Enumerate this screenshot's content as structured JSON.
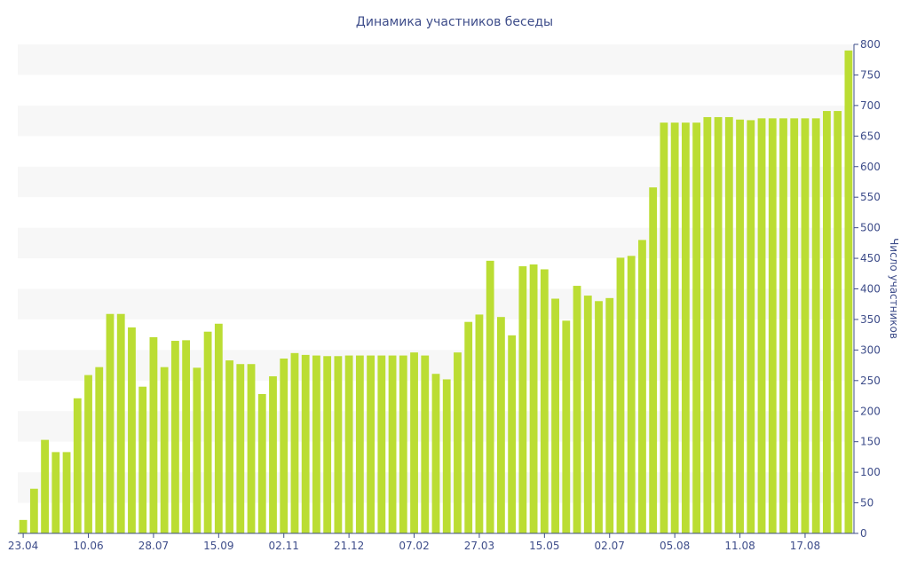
{
  "colors": {
    "bar": "#bbdd33",
    "band": "#f7f7f7",
    "axis": "#3e4d8a",
    "text": "#3e4d8a"
  },
  "chart_data": {
    "type": "bar",
    "title": "Динамика участников беседы",
    "ylabel": "Число участников",
    "xlabel": "",
    "ylim": [
      0,
      800
    ],
    "y_ticks": [
      0,
      50,
      100,
      150,
      200,
      250,
      300,
      350,
      400,
      450,
      500,
      550,
      600,
      650,
      700,
      750,
      800
    ],
    "y_axis_position": "right",
    "grid": "alternating horizontal bands",
    "x_tick_labels": [
      {
        "label": "23.04",
        "index": 0
      },
      {
        "label": "10.06",
        "index": 6
      },
      {
        "label": "28.07",
        "index": 12
      },
      {
        "label": "15.09",
        "index": 18
      },
      {
        "label": "02.11",
        "index": 24
      },
      {
        "label": "21.12",
        "index": 30
      },
      {
        "label": "07.02",
        "index": 36
      },
      {
        "label": "27.03",
        "index": 42
      },
      {
        "label": "15.05",
        "index": 48
      },
      {
        "label": "02.07",
        "index": 54
      },
      {
        "label": "05.08",
        "index": 60
      },
      {
        "label": "11.08",
        "index": 66
      },
      {
        "label": "17.08",
        "index": 72
      }
    ],
    "values": [
      22,
      73,
      153,
      133,
      133,
      221,
      259,
      272,
      359,
      359,
      337,
      240,
      321,
      272,
      315,
      316,
      271,
      330,
      343,
      283,
      277,
      277,
      228,
      257,
      286,
      295,
      292,
      291,
      290,
      290,
      291,
      291,
      291,
      291,
      291,
      291,
      296,
      291,
      261,
      252,
      296,
      346,
      358,
      446,
      354,
      324,
      437,
      440,
      432,
      384,
      348,
      405,
      389,
      380,
      385,
      451,
      454,
      480,
      566,
      672,
      672,
      672,
      672,
      681,
      681,
      681,
      677,
      676,
      679,
      679,
      679,
      679,
      679,
      679,
      691,
      691,
      790
    ]
  }
}
